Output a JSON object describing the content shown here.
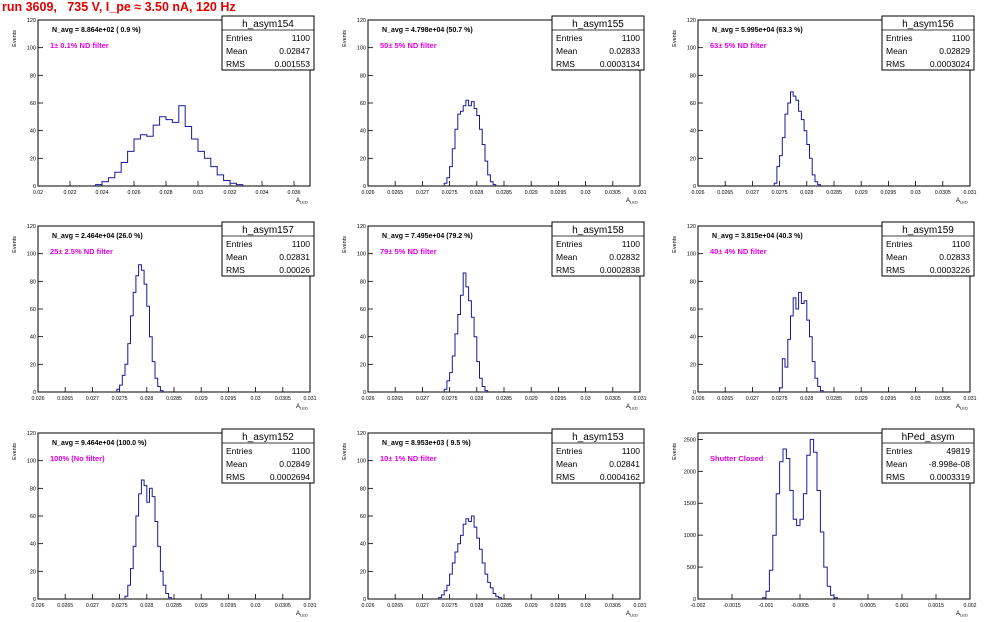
{
  "run_title": "run 3609,   735 V, I_pe ≈ 3.50 nA, 120 Hz",
  "colors": {
    "title": "#e00000",
    "hist": "#1a1a99",
    "note": "#e000e0",
    "axis": "#000000"
  },
  "ylabel_common": "Events",
  "chart_data": [
    {
      "type": "histogram",
      "name": "h_asym154",
      "avg": "N_avg = 8.864e+02 ( 0.9 %)",
      "note": "1± 0.1% ND filter",
      "stats": {
        "Entries": "1100",
        "Mean": "0.02847",
        "RMS": "0.001553"
      },
      "xlabel": "A_LED",
      "ylabel": "Events",
      "xlim": [
        0.02,
        0.037
      ],
      "ylim": [
        0,
        120
      ],
      "xticks": [
        "0.02",
        "0.022",
        "0.024",
        "0.026",
        "0.028",
        "0.03",
        "0.032",
        "0.034",
        "0.036"
      ],
      "xtick_vals": [
        0.02,
        0.022,
        0.024,
        0.026,
        0.028,
        0.03,
        0.032,
        0.034,
        0.036
      ],
      "yticks": [
        0,
        20,
        40,
        60,
        80,
        100,
        120
      ],
      "bin_lo": 0.0236,
      "bin_w": 0.0004,
      "counts": [
        1,
        3,
        6,
        10,
        17,
        25,
        34,
        37,
        36,
        44,
        50,
        48,
        46,
        58,
        43,
        34,
        25,
        20,
        14,
        8,
        4,
        2,
        1
      ]
    },
    {
      "type": "histogram",
      "name": "h_asym155",
      "avg": "N_avg = 4.798e+04 (50.7 %)",
      "note": "50± 5% ND filter",
      "stats": {
        "Entries": "1100",
        "Mean": "0.02833",
        "RMS": "0.0003134"
      },
      "xlabel": "A_LED",
      "ylabel": "Events",
      "xlim": [
        0.026,
        0.031
      ],
      "ylim": [
        0,
        120
      ],
      "xticks": [
        "0.026",
        "0.0265",
        "0.027",
        "0.0275",
        "0.028",
        "0.0285",
        "0.029",
        "0.0295",
        "0.03",
        "0.0305",
        "0.031"
      ],
      "xtick_vals": [
        0.026,
        0.0265,
        0.027,
        0.0275,
        0.028,
        0.0285,
        0.029,
        0.0295,
        0.03,
        0.0305,
        0.031
      ],
      "yticks": [
        0,
        20,
        40,
        60,
        80,
        100,
        120
      ],
      "bin_lo": 0.0274,
      "bin_w": 5e-05,
      "counts": [
        2,
        6,
        14,
        27,
        41,
        52,
        54,
        58,
        62,
        58,
        61,
        56,
        51,
        41,
        30,
        18,
        8,
        3,
        1
      ]
    },
    {
      "type": "histogram",
      "name": "h_asym156",
      "avg": "N_avg = 5.995e+04 (63.3 %)",
      "note": "63± 5% ND filter",
      "stats": {
        "Entries": "1100",
        "Mean": "0.02829",
        "RMS": "0.0003024"
      },
      "xlabel": "A_LED",
      "ylabel": "Events",
      "xlim": [
        0.026,
        0.031
      ],
      "ylim": [
        0,
        120
      ],
      "xticks": [
        "0.026",
        "0.0265",
        "0.027",
        "0.0275",
        "0.028",
        "0.0285",
        "0.029",
        "0.0295",
        "0.03",
        "0.0305",
        "0.031"
      ],
      "xtick_vals": [
        0.026,
        0.0265,
        0.027,
        0.0275,
        0.028,
        0.0285,
        0.029,
        0.0295,
        0.03,
        0.0305,
        0.031
      ],
      "yticks": [
        0,
        20,
        40,
        60,
        80,
        100,
        120
      ],
      "bin_lo": 0.0274,
      "bin_w": 5e-05,
      "counts": [
        2,
        14,
        22,
        35,
        52,
        60,
        68,
        65,
        62,
        54,
        48,
        40,
        30,
        20,
        8,
        3,
        1
      ]
    },
    {
      "type": "histogram",
      "name": "h_asym157",
      "avg": "N_avg = 2.464e+04 (26.0 %)",
      "note": "25± 2.5% ND filter",
      "stats": {
        "Entries": "1100",
        "Mean": "0.02831",
        "RMS": "0.00026"
      },
      "xlabel": "A_LED",
      "ylabel": "Events",
      "xlim": [
        0.026,
        0.031
      ],
      "ylim": [
        0,
        120
      ],
      "xticks": [
        "0.026",
        "0.0265",
        "0.027",
        "0.0275",
        "0.028",
        "0.0285",
        "0.029",
        "0.0295",
        "0.03",
        "0.0305",
        "0.031"
      ],
      "xtick_vals": [
        0.026,
        0.0265,
        0.027,
        0.0275,
        0.028,
        0.0285,
        0.029,
        0.0295,
        0.03,
        0.0305,
        0.031
      ],
      "yticks": [
        0,
        20,
        40,
        60,
        80,
        100,
        120
      ],
      "bin_lo": 0.02745,
      "bin_w": 5e-05,
      "counts": [
        2,
        5,
        12,
        20,
        35,
        55,
        72,
        84,
        92,
        88,
        78,
        62,
        40,
        22,
        10,
        4,
        1
      ]
    },
    {
      "type": "histogram",
      "name": "h_asym158",
      "avg": "N_avg = 7.495e+04 (79.2 %)",
      "note": "79± 5% ND filter",
      "stats": {
        "Entries": "1100",
        "Mean": "0.02832",
        "RMS": "0.0002838"
      },
      "xlabel": "A_LED",
      "ylabel": "Events",
      "xlim": [
        0.026,
        0.031
      ],
      "ylim": [
        0,
        120
      ],
      "xticks": [
        "0.026",
        "0.0265",
        "0.027",
        "0.0275",
        "0.028",
        "0.0285",
        "0.029",
        "0.0295",
        "0.03",
        "0.0305",
        "0.031"
      ],
      "xtick_vals": [
        0.026,
        0.0265,
        0.027,
        0.0275,
        0.028,
        0.0285,
        0.029,
        0.0295,
        0.03,
        0.0305,
        0.031
      ],
      "yticks": [
        0,
        20,
        40,
        60,
        80,
        100,
        120
      ],
      "bin_lo": 0.0274,
      "bin_w": 5e-05,
      "counts": [
        2,
        8,
        14,
        26,
        42,
        56,
        70,
        86,
        76,
        66,
        54,
        40,
        22,
        10,
        4,
        1
      ]
    },
    {
      "type": "histogram",
      "name": "h_asym159",
      "avg": "N_avg = 3.815e+04 (40.3 %)",
      "note": "40± 4% ND filter",
      "stats": {
        "Entries": "1100",
        "Mean": "0.02833",
        "RMS": "0.0003226"
      },
      "xlabel": "A_LED",
      "ylabel": "Events",
      "xlim": [
        0.026,
        0.031
      ],
      "ylim": [
        0,
        120
      ],
      "xticks": [
        "0.026",
        "0.0265",
        "0.027",
        "0.0275",
        "0.028",
        "0.0285",
        "0.029",
        "0.0295",
        "0.03",
        "0.0305",
        "0.031"
      ],
      "xtick_vals": [
        0.026,
        0.0265,
        0.027,
        0.0275,
        0.028,
        0.0285,
        0.029,
        0.0295,
        0.03,
        0.0305,
        0.031
      ],
      "yticks": [
        0,
        20,
        40,
        60,
        80,
        100,
        120
      ],
      "bin_lo": 0.0275,
      "bin_w": 5e-05,
      "counts": [
        3,
        24,
        18,
        38,
        55,
        68,
        60,
        72,
        64,
        66,
        52,
        40,
        22,
        10,
        4,
        1
      ]
    },
    {
      "type": "histogram",
      "name": "h_asym152",
      "avg": "N_avg = 9.464e+04 (100.0 %)",
      "note": "100% (No filter)",
      "stats": {
        "Entries": "1100",
        "Mean": "0.02849",
        "RMS": "0.0002694"
      },
      "xlabel": "A_LED",
      "ylabel": "Events",
      "xlim": [
        0.026,
        0.031
      ],
      "ylim": [
        0,
        120
      ],
      "xticks": [
        "0.026",
        "0.0265",
        "0.027",
        "0.0275",
        "0.028",
        "0.0285",
        "0.029",
        "0.0295",
        "0.03",
        "0.0305",
        "0.031"
      ],
      "xtick_vals": [
        0.026,
        0.0265,
        0.027,
        0.0275,
        0.028,
        0.0285,
        0.029,
        0.0295,
        0.03,
        0.0305,
        0.031
      ],
      "yticks": [
        0,
        20,
        40,
        60,
        80,
        100,
        120
      ],
      "bin_lo": 0.0276,
      "bin_w": 5e-05,
      "counts": [
        2,
        10,
        22,
        38,
        60,
        76,
        86,
        82,
        70,
        80,
        74,
        56,
        38,
        20,
        10,
        4,
        1
      ]
    },
    {
      "type": "histogram",
      "name": "h_asym153",
      "avg": "N_avg = 8.953e+03 ( 9.5 %)",
      "note": "10± 1% ND filter",
      "stats": {
        "Entries": "1100",
        "Mean": "0.02841",
        "RMS": "0.0004162"
      },
      "xlabel": "A_LED",
      "ylabel": "Events",
      "xlim": [
        0.026,
        0.031
      ],
      "ylim": [
        0,
        120
      ],
      "xticks": [
        "0.026",
        "0.0265",
        "0.027",
        "0.0275",
        "0.028",
        "0.0285",
        "0.029",
        "0.0295",
        "0.03",
        "0.0305",
        "0.031"
      ],
      "xtick_vals": [
        0.026,
        0.0265,
        0.027,
        0.0275,
        0.028,
        0.0285,
        0.029,
        0.0295,
        0.03,
        0.0305,
        0.031
      ],
      "yticks": [
        0,
        20,
        40,
        60,
        80,
        100,
        120
      ],
      "bin_lo": 0.0273,
      "bin_w": 5e-05,
      "counts": [
        1,
        3,
        6,
        10,
        18,
        26,
        34,
        40,
        46,
        54,
        58,
        56,
        60,
        52,
        44,
        36,
        26,
        18,
        12,
        8,
        4,
        2,
        1
      ]
    },
    {
      "type": "histogram",
      "name": "hPed_asym",
      "avg": "",
      "note": "Shutter Closed",
      "stats": {
        "Entries": "49819",
        "Mean": "-8.998e-08",
        "RMS": "0.0003319"
      },
      "xlabel": "A_LED",
      "ylabel": "Events",
      "xlim": [
        -0.002,
        0.002
      ],
      "ylim": [
        0,
        2600
      ],
      "xticks": [
        "-0.002",
        "-0.0015",
        "-0.001",
        "-0.0005",
        "0",
        "0.0005",
        "0.001",
        "0.0015",
        "0.002"
      ],
      "xtick_vals": [
        -0.002,
        -0.0015,
        -0.001,
        -0.0005,
        0,
        0.0005,
        0.001,
        0.0015,
        0.002
      ],
      "yticks": [
        0,
        500,
        1000,
        1500,
        2000,
        2500
      ],
      "bin_lo": -0.00105,
      "bin_w": 5e-05,
      "counts": [
        20,
        120,
        450,
        1000,
        1650,
        2150,
        2350,
        2200,
        1700,
        1250,
        1150,
        1250,
        1650,
        2250,
        2500,
        2300,
        1700,
        1050,
        500,
        200,
        60,
        20
      ]
    }
  ]
}
